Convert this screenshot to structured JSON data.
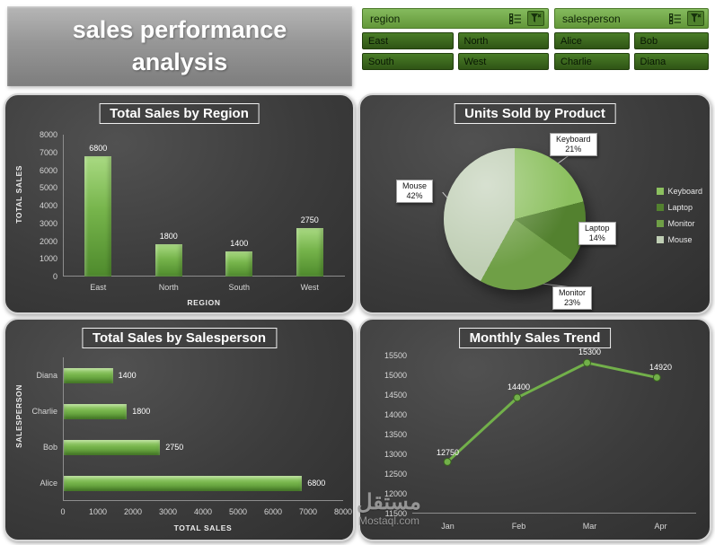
{
  "header": {
    "title": "sales performance analysis"
  },
  "slicers": [
    {
      "name": "region",
      "items": [
        "East",
        "North",
        "South",
        "West"
      ]
    },
    {
      "name": "salesperson",
      "items": [
        "Alice",
        "Bob",
        "Charlie",
        "Diana"
      ]
    }
  ],
  "icons": {
    "multi_select": "multi-select-icon",
    "clear_filter": "clear-filter-icon"
  },
  "colors": {
    "accent_green": "#70ad47",
    "panel_background": "#3a3a3a",
    "slicer_item_green": "#35591b"
  },
  "watermark": {
    "line1": "مستقل",
    "line2": "Mostaql.com"
  },
  "chart_data": [
    {
      "type": "bar",
      "title": "Total Sales by Region",
      "categories": [
        "East",
        "North",
        "South",
        "West"
      ],
      "values": [
        6800,
        1800,
        1400,
        2750
      ],
      "xlabel": "REGION",
      "ylabel": "TOTAL SALES",
      "ylim": [
        0,
        8000
      ],
      "ytick_step": 1000,
      "data_labels": true,
      "grid": false
    },
    {
      "type": "pie",
      "title": "Units Sold by Product",
      "labels": [
        "Keyboard",
        "Laptop",
        "Monitor",
        "Mouse"
      ],
      "percents": [
        21,
        14,
        23,
        42
      ],
      "colors": [
        "#8cc05f",
        "#53812f",
        "#6f9f46",
        "#bfceb4"
      ],
      "legend_position": "right"
    },
    {
      "type": "bar-horizontal",
      "title": "Total Sales by Salesperson",
      "categories": [
        "Diana",
        "Charlie",
        "Bob",
        "Alice"
      ],
      "values": [
        1400,
        1800,
        2750,
        6800
      ],
      "xlabel": "TOTAL SALES",
      "ylabel": "SALESPERSON",
      "xlim": [
        0,
        8000
      ],
      "xtick_step": 1000,
      "data_labels": true,
      "grid": false
    },
    {
      "type": "line",
      "title": "Monthly Sales Trend",
      "categories": [
        "Jan",
        "Feb",
        "Mar",
        "Apr"
      ],
      "values": [
        12750,
        14400,
        15300,
        14920
      ],
      "ylim": [
        11500,
        15500
      ],
      "ytick_step": 500,
      "line_color": "#72b04a",
      "data_labels": true,
      "grid": false
    }
  ]
}
